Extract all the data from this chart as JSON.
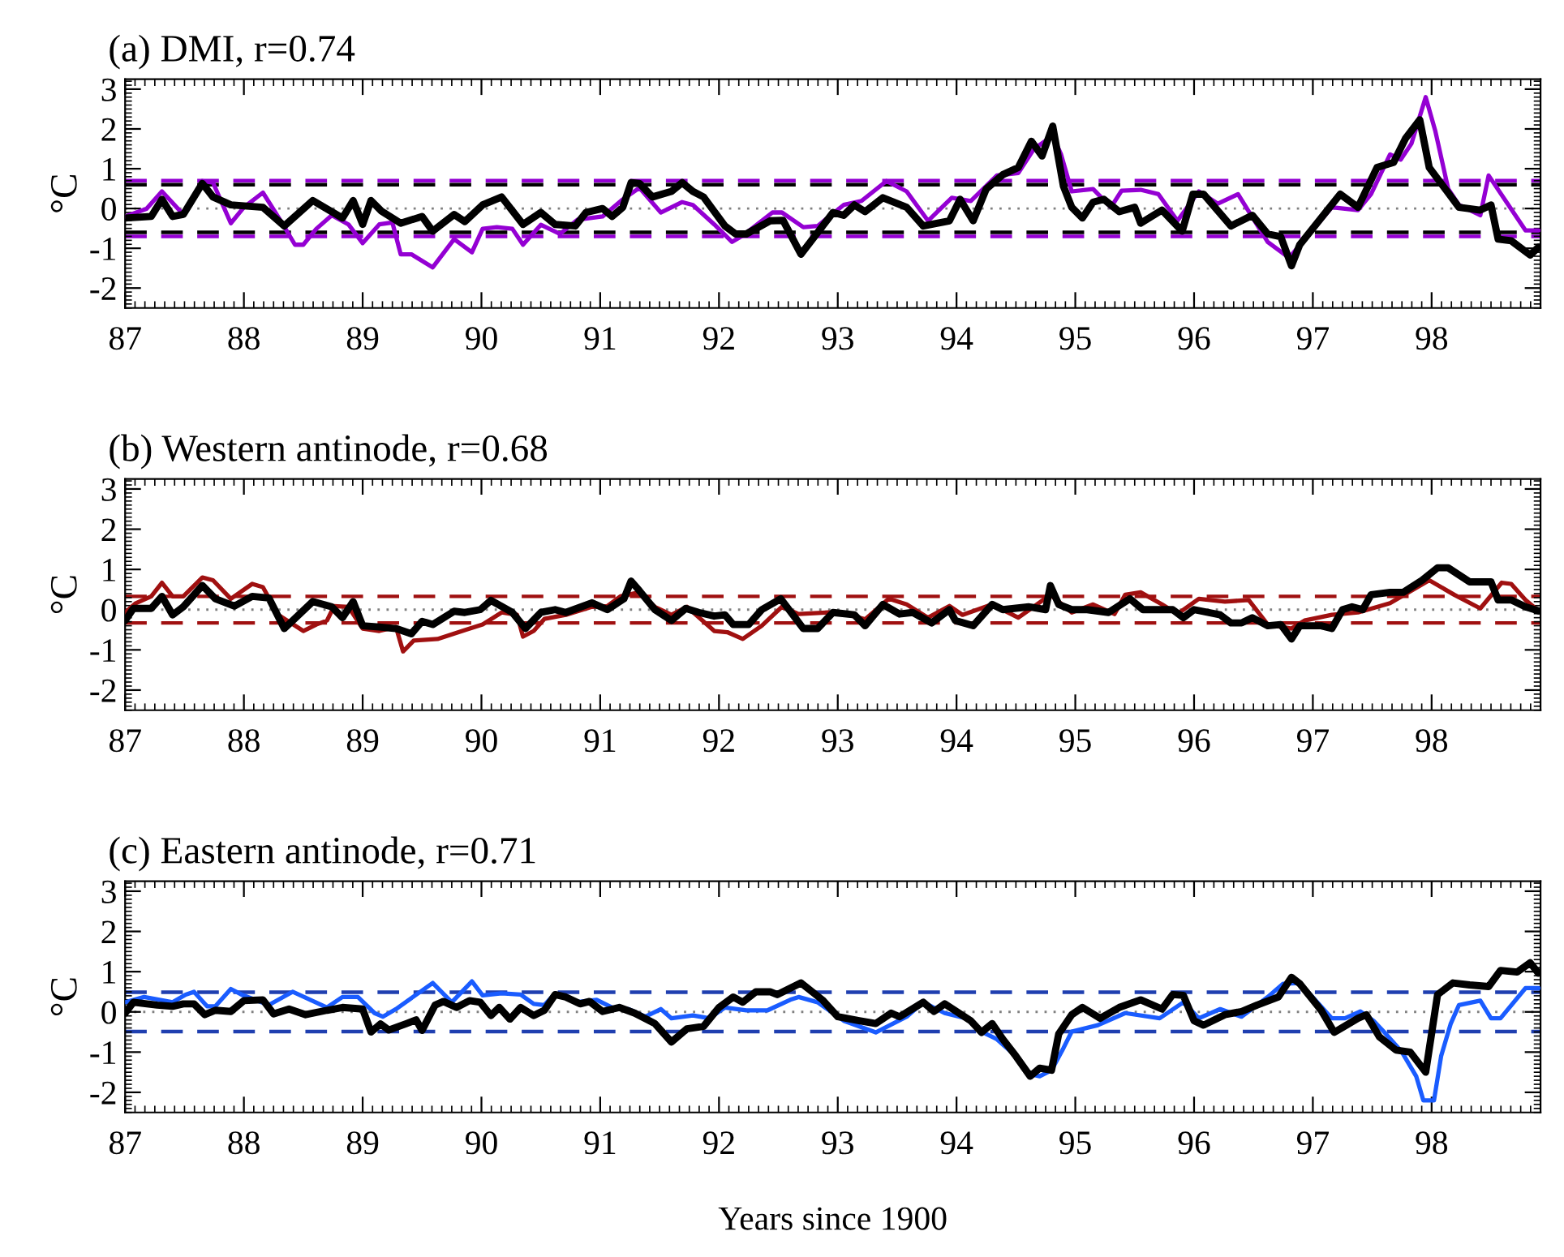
{
  "chart_data": [
    {
      "type": "line",
      "title": "(a) DMI, r=0.74",
      "ylabel": "°C",
      "xlim": [
        87,
        98.917
      ],
      "xticks": [
        87,
        88,
        89,
        90,
        91,
        92,
        93,
        94,
        95,
        96,
        97,
        98
      ],
      "ylim": [
        -2.5,
        3.25
      ],
      "yticks": [
        -2,
        -1,
        0,
        1,
        2,
        3
      ],
      "grid": false,
      "legend": false,
      "marker": "none",
      "line_style": "solid",
      "ref_lines": [
        {
          "axis": "y",
          "value": 0,
          "color": "#808080",
          "line_style": "dotted"
        },
        {
          "axis": "y",
          "value": 0.6,
          "color": "#000000",
          "line_style": "dashed"
        },
        {
          "axis": "y",
          "value": -0.6,
          "color": "#000000",
          "line_style": "dashed"
        },
        {
          "axis": "y",
          "value": 0.7,
          "color": "#9400d3",
          "line_style": "dashed"
        },
        {
          "axis": "y",
          "value": -0.7,
          "color": "#9400d3",
          "line_style": "dashed"
        }
      ],
      "series": [
        {
          "color": "#000000",
          "x": [
            87.0,
            87.22,
            87.31,
            87.4,
            87.49,
            87.65,
            87.74,
            87.89,
            88.16,
            88.34,
            88.58,
            88.83,
            88.92,
            89.0,
            89.07,
            89.16,
            89.32,
            89.5,
            89.59,
            89.77,
            89.86,
            90.01,
            90.17,
            90.35,
            90.5,
            90.62,
            90.79,
            90.88,
            91.02,
            91.1,
            91.19,
            91.26,
            91.33,
            91.44,
            91.6,
            91.69,
            91.78,
            91.87,
            92.05,
            92.14,
            92.23,
            92.43,
            92.54,
            92.69,
            92.96,
            93.05,
            93.14,
            93.23,
            93.38,
            93.58,
            93.72,
            93.94,
            94.03,
            94.14,
            94.25,
            94.39,
            94.52,
            94.63,
            94.72,
            94.81,
            94.9,
            94.97,
            95.06,
            95.15,
            95.24,
            95.37,
            95.5,
            95.55,
            95.73,
            95.9,
            95.99,
            96.08,
            96.31,
            96.49,
            96.62,
            96.73,
            96.82,
            96.89,
            97.23,
            97.38,
            97.54,
            97.68,
            97.78,
            97.9,
            97.98,
            98.23,
            98.41,
            98.5,
            98.56,
            98.67,
            98.83,
            98.9
          ],
          "values": [
            -0.24,
            -0.2,
            0.23,
            -0.2,
            -0.15,
            0.63,
            0.29,
            0.09,
            0.03,
            -0.44,
            0.2,
            -0.24,
            0.2,
            -0.4,
            0.2,
            -0.07,
            -0.37,
            -0.2,
            -0.57,
            -0.15,
            -0.33,
            0.09,
            0.29,
            -0.4,
            -0.1,
            -0.4,
            -0.44,
            -0.1,
            0,
            -0.2,
            0.03,
            0.65,
            0.63,
            0.29,
            0.43,
            0.65,
            0.43,
            0.29,
            -0.44,
            -0.64,
            -0.64,
            -0.31,
            -0.3,
            -1.15,
            -0.1,
            -0.17,
            0.09,
            -0.08,
            0.27,
            0.03,
            -0.44,
            -0.31,
            0.23,
            -0.31,
            0.49,
            0.85,
            1.03,
            1.69,
            1.32,
            2.07,
            0.56,
            0.03,
            -0.24,
            0.16,
            0.23,
            -0.08,
            0.03,
            -0.37,
            -0.04,
            -0.57,
            0.36,
            0.36,
            -0.44,
            -0.17,
            -0.64,
            -0.71,
            -1.44,
            -0.91,
            0.36,
            0.03,
            1.03,
            1.16,
            1.76,
            2.23,
            1.03,
            0.03,
            -0.04,
            0.09,
            -0.77,
            -0.81,
            -1.17,
            -0.97
          ]
        },
        {
          "color": "#9400d3",
          "x": [
            87.0,
            87.18,
            87.31,
            87.49,
            87.65,
            87.74,
            87.89,
            88.0,
            88.16,
            88.31,
            88.43,
            88.5,
            88.61,
            88.74,
            88.88,
            89.0,
            89.14,
            89.25,
            89.32,
            89.41,
            89.59,
            89.77,
            89.92,
            90.01,
            90.13,
            90.26,
            90.35,
            90.5,
            90.66,
            90.81,
            91.02,
            91.19,
            91.33,
            91.51,
            91.69,
            91.78,
            91.96,
            92.11,
            92.2,
            92.45,
            92.53,
            92.71,
            92.83,
            93.05,
            93.2,
            93.41,
            93.58,
            93.76,
            93.96,
            94.12,
            94.34,
            94.52,
            94.65,
            94.81,
            94.88,
            94.97,
            95.15,
            95.3,
            95.39,
            95.55,
            95.7,
            95.86,
            96.04,
            96.2,
            96.37,
            96.62,
            96.8,
            97.16,
            97.38,
            97.49,
            97.65,
            97.74,
            97.83,
            97.95,
            98.03,
            98.14,
            98.23,
            98.41,
            98.48,
            98.79,
            98.9
          ],
          "values": [
            -0.2,
            -0.01,
            0.43,
            -0.15,
            0.69,
            0.65,
            -0.37,
            0.03,
            0.4,
            -0.31,
            -0.91,
            -0.91,
            -0.51,
            -0.17,
            -0.4,
            -0.87,
            -0.4,
            -0.35,
            -1.15,
            -1.15,
            -1.48,
            -0.77,
            -1.1,
            -0.51,
            -0.47,
            -0.51,
            -0.91,
            -0.41,
            -0.64,
            -0.28,
            -0.2,
            0.23,
            0.52,
            -0.1,
            0.16,
            0.09,
            -0.4,
            -0.84,
            -0.68,
            -0.1,
            -0.1,
            -0.47,
            -0.44,
            0.09,
            0.19,
            0.69,
            0.43,
            -0.31,
            0.27,
            0.19,
            0.83,
            0.89,
            1.49,
            1.83,
            1.36,
            0.43,
            0.49,
            0.03,
            0.45,
            0.47,
            0.36,
            -0.31,
            0.43,
            0.12,
            0.36,
            -0.84,
            -1.24,
            0.03,
            -0.04,
            0.36,
            1.36,
            1.23,
            1.63,
            2.8,
            1.96,
            0.49,
            0.09,
            -0.17,
            0.83,
            -0.55,
            -0.55
          ]
        }
      ]
    },
    {
      "type": "line",
      "title": "(b) Western antinode, r=0.68",
      "ylabel": "°C",
      "xlim": [
        87,
        98.917
      ],
      "xticks": [
        87,
        88,
        89,
        90,
        91,
        92,
        93,
        94,
        95,
        96,
        97,
        98
      ],
      "ylim": [
        -2.5,
        3.25
      ],
      "yticks": [
        -2,
        -1,
        0,
        1,
        2,
        3
      ],
      "grid": false,
      "legend": false,
      "marker": "none",
      "line_style": "solid",
      "ref_lines": [
        {
          "axis": "y",
          "value": 0,
          "color": "#808080",
          "line_style": "dotted"
        },
        {
          "axis": "y",
          "value": 0.33,
          "color": "#a01010",
          "line_style": "dashed"
        },
        {
          "axis": "y",
          "value": -0.33,
          "color": "#a01010",
          "line_style": "dashed"
        }
      ],
      "series": [
        {
          "color": "#000000",
          "x": [
            87.0,
            87.07,
            87.22,
            87.31,
            87.4,
            87.49,
            87.65,
            87.76,
            87.92,
            88.07,
            88.21,
            88.34,
            88.58,
            88.74,
            88.83,
            88.92,
            89.0,
            89.14,
            89.28,
            89.41,
            89.5,
            89.59,
            89.77,
            89.86,
            89.99,
            90.08,
            90.26,
            90.37,
            90.5,
            90.62,
            90.71,
            90.93,
            91.06,
            91.2,
            91.26,
            91.33,
            91.46,
            91.6,
            91.72,
            91.83,
            91.96,
            92.05,
            92.12,
            92.25,
            92.36,
            92.52,
            92.71,
            92.83,
            92.96,
            93.14,
            93.23,
            93.38,
            93.52,
            93.63,
            93.79,
            93.94,
            93.99,
            94.14,
            94.3,
            94.39,
            94.61,
            94.75,
            94.79,
            94.86,
            94.97,
            95.1,
            95.28,
            95.46,
            95.57,
            95.82,
            95.91,
            96.0,
            96.22,
            96.31,
            96.4,
            96.49,
            96.62,
            96.73,
            96.82,
            96.89,
            97.07,
            97.16,
            97.25,
            97.33,
            97.42,
            97.49,
            97.65,
            97.76,
            97.92,
            98.05,
            98.14,
            98.32,
            98.5,
            98.56,
            98.67,
            98.79,
            98.9
          ],
          "values": [
            -0.27,
            0.03,
            0.03,
            0.33,
            -0.13,
            0.07,
            0.6,
            0.27,
            0.09,
            0.33,
            0.29,
            -0.47,
            0.2,
            0.07,
            -0.2,
            0.2,
            -0.4,
            -0.43,
            -0.47,
            -0.6,
            -0.29,
            -0.37,
            -0.04,
            -0.07,
            0,
            0.23,
            -0.07,
            -0.47,
            -0.07,
            0,
            -0.07,
            0.17,
            0,
            0.27,
            0.71,
            0.47,
            0,
            -0.27,
            0.03,
            -0.07,
            -0.16,
            -0.13,
            -0.37,
            -0.37,
            0,
            0.27,
            -0.47,
            -0.47,
            -0.07,
            -0.13,
            -0.4,
            0.13,
            -0.11,
            -0.07,
            -0.33,
            0,
            -0.27,
            -0.4,
            0.13,
            0,
            0.07,
            0,
            0.6,
            0.13,
            0,
            0,
            -0.07,
            0.27,
            0,
            0,
            -0.2,
            0,
            -0.13,
            -0.33,
            -0.33,
            -0.2,
            -0.4,
            -0.37,
            -0.73,
            -0.4,
            -0.4,
            -0.47,
            0,
            0.07,
            0,
            0.37,
            0.43,
            0.43,
            0.73,
            1.04,
            1.04,
            0.69,
            0.69,
            0.24,
            0.24,
            0.07,
            -0.03
          ]
        },
        {
          "color": "#a01010",
          "x": [
            87.0,
            87.09,
            87.22,
            87.31,
            87.4,
            87.49,
            87.65,
            87.74,
            87.89,
            88.07,
            88.16,
            88.29,
            88.5,
            88.61,
            88.7,
            88.76,
            88.88,
            89.0,
            89.14,
            89.28,
            89.34,
            89.43,
            89.63,
            89.86,
            90.01,
            90.17,
            90.3,
            90.35,
            90.44,
            90.53,
            90.71,
            90.93,
            91.06,
            91.17,
            91.33,
            91.46,
            91.6,
            91.73,
            91.96,
            92.07,
            92.2,
            92.36,
            92.53,
            92.67,
            92.92,
            93.09,
            93.23,
            93.43,
            93.58,
            93.76,
            93.94,
            94.05,
            94.3,
            94.52,
            94.79,
            94.97,
            95.15,
            95.33,
            95.42,
            95.55,
            95.73,
            95.86,
            96.04,
            96.26,
            96.46,
            96.62,
            96.82,
            96.93,
            97.16,
            97.38,
            97.65,
            97.98,
            98.19,
            98.41,
            98.59,
            98.67,
            98.79,
            98.9
          ],
          "values": [
            -0.07,
            0.16,
            0.33,
            0.67,
            0.33,
            0.33,
            0.8,
            0.73,
            0.27,
            0.64,
            0.56,
            -0.13,
            -0.53,
            -0.37,
            -0.27,
            0.09,
            0.07,
            -0.47,
            -0.53,
            -0.43,
            -1.04,
            -0.77,
            -0.73,
            -0.51,
            -0.37,
            -0.07,
            -0.13,
            -0.67,
            -0.53,
            -0.23,
            -0.13,
            0.07,
            0.09,
            0.33,
            0.43,
            0.07,
            -0.13,
            0.07,
            -0.53,
            -0.56,
            -0.73,
            -0.4,
            0.07,
            -0.11,
            -0.07,
            -0.13,
            -0.24,
            0.27,
            0.13,
            -0.2,
            0.09,
            -0.13,
            0.13,
            -0.2,
            0.37,
            -0.07,
            0.13,
            -0.11,
            0.37,
            0.43,
            0.13,
            -0.11,
            0.27,
            0.2,
            0.24,
            -0.37,
            -0.47,
            -0.27,
            -0.13,
            -0.07,
            0.16,
            0.73,
            0.37,
            0.03,
            0.67,
            0.64,
            0.24,
            -0.03
          ]
        }
      ]
    },
    {
      "type": "line",
      "title": "(c) Eastern antinode, r=0.71",
      "ylabel": "°C",
      "xlabel": "Years since 1900",
      "xlim": [
        87,
        98.917
      ],
      "xticks": [
        87,
        88,
        89,
        90,
        91,
        92,
        93,
        94,
        95,
        96,
        97,
        98
      ],
      "ylim": [
        -2.5,
        3.25
      ],
      "yticks": [
        -2,
        -1,
        0,
        1,
        2,
        3
      ],
      "grid": false,
      "legend": false,
      "marker": "none",
      "line_style": "solid",
      "ref_lines": [
        {
          "axis": "y",
          "value": 0,
          "color": "#808080",
          "line_style": "dotted"
        },
        {
          "axis": "y",
          "value": 0.49,
          "color": "#1f3fb0",
          "line_style": "dashed"
        },
        {
          "axis": "y",
          "value": -0.49,
          "color": "#1f3fb0",
          "line_style": "dashed"
        }
      ],
      "series": [
        {
          "color": "#000000",
          "x": [
            87.0,
            87.07,
            87.27,
            87.4,
            87.49,
            87.58,
            87.67,
            87.76,
            87.89,
            88.0,
            88.16,
            88.25,
            88.38,
            88.52,
            88.7,
            88.83,
            89.0,
            89.07,
            89.15,
            89.22,
            89.37,
            89.45,
            89.5,
            89.61,
            89.68,
            89.79,
            89.9,
            89.99,
            90.08,
            90.15,
            90.24,
            90.33,
            90.44,
            90.53,
            90.62,
            90.71,
            90.83,
            90.91,
            91.02,
            91.16,
            91.29,
            91.46,
            91.6,
            91.73,
            91.87,
            92.0,
            92.12,
            92.2,
            92.31,
            92.43,
            92.49,
            92.69,
            92.87,
            93.0,
            93.18,
            93.32,
            93.45,
            93.52,
            93.72,
            93.81,
            93.9,
            94.12,
            94.21,
            94.3,
            94.39,
            94.5,
            94.62,
            94.7,
            94.8,
            94.86,
            94.97,
            95.06,
            95.21,
            95.37,
            95.55,
            95.73,
            95.82,
            95.91,
            96.0,
            96.08,
            96.26,
            96.4,
            96.53,
            96.71,
            96.82,
            96.89,
            97.07,
            97.18,
            97.38,
            97.45,
            97.56,
            97.7,
            97.82,
            97.95,
            98.05,
            98.18,
            98.32,
            98.48,
            98.58,
            98.72,
            98.83,
            98.9
          ],
          "values": [
            -0.03,
            0.24,
            0.17,
            0.14,
            0.2,
            0.2,
            -0.07,
            0.04,
            0.01,
            0.28,
            0.3,
            -0.05,
            0.07,
            -0.07,
            0.04,
            0.11,
            0.07,
            -0.5,
            -0.3,
            -0.45,
            -0.29,
            -0.2,
            -0.46,
            0.17,
            0.26,
            0.11,
            0.28,
            0.24,
            -0.09,
            0.11,
            -0.18,
            0.11,
            -0.09,
            0.04,
            0.43,
            0.37,
            0.2,
            0.26,
            0.01,
            0.11,
            -0.03,
            -0.29,
            -0.75,
            -0.42,
            -0.36,
            0.11,
            0.37,
            0.24,
            0.5,
            0.5,
            0.43,
            0.72,
            0.3,
            -0.12,
            -0.22,
            -0.29,
            -0.03,
            -0.12,
            0.24,
            0.01,
            0.2,
            -0.22,
            -0.51,
            -0.29,
            -0.68,
            -1.1,
            -1.6,
            -1.4,
            -1.45,
            -0.55,
            -0.07,
            0.11,
            -0.16,
            0.11,
            0.3,
            0.07,
            0.43,
            0.41,
            -0.22,
            -0.33,
            -0.07,
            0.01,
            0.17,
            0.37,
            0.86,
            0.7,
            0.04,
            -0.51,
            -0.16,
            -0.07,
            -0.62,
            -0.95,
            -1.0,
            -1.5,
            0.43,
            0.72,
            0.67,
            0.63,
            1.03,
            0.99,
            1.22,
            0.96
          ]
        },
        {
          "color": "#1a5cff",
          "x": [
            87.0,
            87.16,
            87.4,
            87.51,
            87.58,
            87.69,
            87.76,
            87.89,
            87.98,
            88.21,
            88.41,
            88.7,
            88.83,
            88.96,
            89.1,
            89.17,
            89.28,
            89.59,
            89.75,
            89.92,
            90.01,
            90.17,
            90.33,
            90.44,
            90.53,
            90.62,
            90.79,
            90.97,
            91.1,
            91.24,
            91.38,
            91.51,
            91.6,
            91.78,
            91.92,
            92.05,
            92.23,
            92.41,
            92.6,
            92.67,
            92.83,
            93.05,
            93.32,
            93.58,
            93.72,
            93.9,
            94.08,
            94.21,
            94.34,
            94.5,
            94.62,
            94.7,
            94.8,
            94.9,
            94.97,
            95.19,
            95.42,
            95.71,
            95.91,
            96.04,
            96.22,
            96.4,
            96.62,
            96.75,
            96.89,
            97.16,
            97.27,
            97.4,
            97.51,
            97.6,
            97.75,
            97.87,
            97.93,
            98.02,
            98.08,
            98.16,
            98.23,
            98.41,
            98.5,
            98.58,
            98.79,
            98.9
          ],
          "values": [
            0.24,
            0.37,
            0.24,
            0.43,
            0.5,
            0.14,
            0.14,
            0.57,
            0.43,
            0.17,
            0.5,
            0.11,
            0.37,
            0.37,
            -0.03,
            -0.12,
            0.07,
            0.72,
            0.24,
            0.76,
            0.41,
            0.46,
            0.43,
            0.2,
            0.17,
            0.46,
            0.24,
            0.3,
            0.11,
            0.07,
            -0.12,
            0.07,
            -0.16,
            -0.09,
            -0.16,
            0.11,
            0.04,
            0.04,
            0.3,
            0.37,
            0.24,
            -0.22,
            -0.51,
            -0.12,
            0.24,
            -0.03,
            -0.16,
            -0.49,
            -0.68,
            -1.1,
            -1.55,
            -1.6,
            -1.45,
            -0.9,
            -0.49,
            -0.33,
            -0.03,
            -0.16,
            0.24,
            -0.16,
            0.07,
            -0.12,
            0.37,
            0.7,
            0.72,
            -0.16,
            -0.16,
            0.01,
            -0.22,
            -0.5,
            -1.0,
            -1.6,
            -2.2,
            -2.2,
            -1.1,
            -0.3,
            0.17,
            0.28,
            -0.16,
            -0.16,
            0.59,
            0.59
          ]
        }
      ]
    }
  ]
}
